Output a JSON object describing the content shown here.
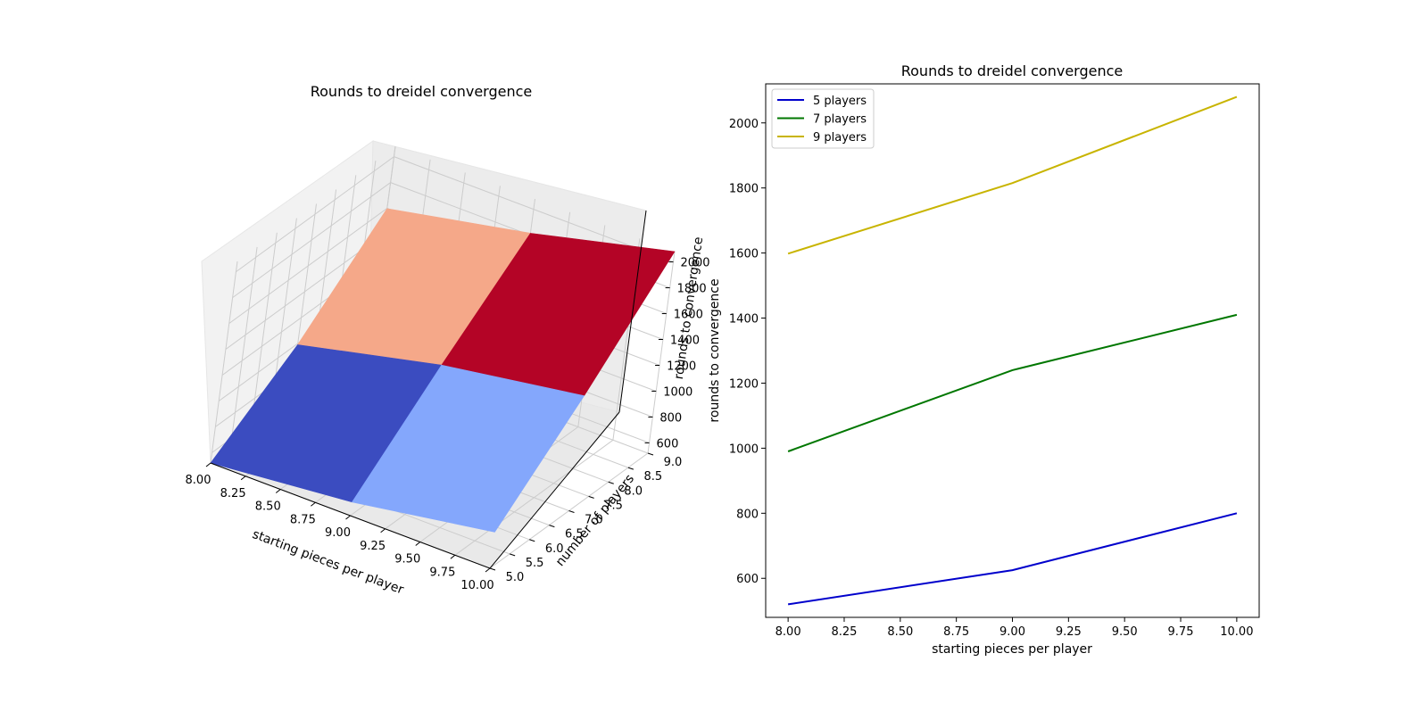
{
  "chart_data": [
    {
      "type": "surface",
      "title": "Rounds to dreidel convergence",
      "xlabel": "starting pieces per player",
      "ylabel": "number of players",
      "zlabel": "rounds to convergence",
      "x_ticks": [
        "8.00",
        "8.25",
        "8.50",
        "8.75",
        "9.00",
        "9.25",
        "9.50",
        "9.75",
        "10.00"
      ],
      "y_ticks": [
        "5.0",
        "5.5",
        "6.0",
        "6.5",
        "7.0",
        "7.5",
        "8.0",
        "8.5",
        "9.0"
      ],
      "z_ticks": [
        "600",
        "800",
        "1000",
        "1200",
        "1400",
        "1600",
        "1800",
        "2000"
      ],
      "x": [
        8,
        9,
        10
      ],
      "y": [
        5,
        7,
        9
      ],
      "z": [
        [
          520,
          625,
          800
        ],
        [
          990,
          1240,
          1410
        ],
        [
          1598,
          1815,
          2080
        ]
      ],
      "cell_colors": [
        [
          "#3b4cc0",
          "#84a7fc"
        ],
        [
          "#f5a889",
          "#b40426"
        ]
      ],
      "colormap": "coolwarm"
    },
    {
      "type": "line",
      "title": "Rounds to dreidel convergence",
      "xlabel": "starting pieces per player",
      "ylabel": "rounds to convergence",
      "x": [
        8,
        9,
        10
      ],
      "xlim": [
        7.9,
        10.1
      ],
      "ylim": [
        480,
        2120
      ],
      "x_ticks": [
        "8.00",
        "8.25",
        "8.50",
        "8.75",
        "9.00",
        "9.25",
        "9.50",
        "9.75",
        "10.00"
      ],
      "y_ticks": [
        "600",
        "800",
        "1000",
        "1200",
        "1400",
        "1600",
        "1800",
        "2000"
      ],
      "legend_position": "upper-left",
      "series": [
        {
          "name": "5 players",
          "color": "#0000cc",
          "values": [
            520,
            625,
            800
          ]
        },
        {
          "name": "7 players",
          "color": "#007700",
          "values": [
            990,
            1240,
            1410
          ]
        },
        {
          "name": "9 players",
          "color": "#c8b400",
          "values": [
            1598,
            1815,
            2080
          ]
        }
      ]
    }
  ]
}
